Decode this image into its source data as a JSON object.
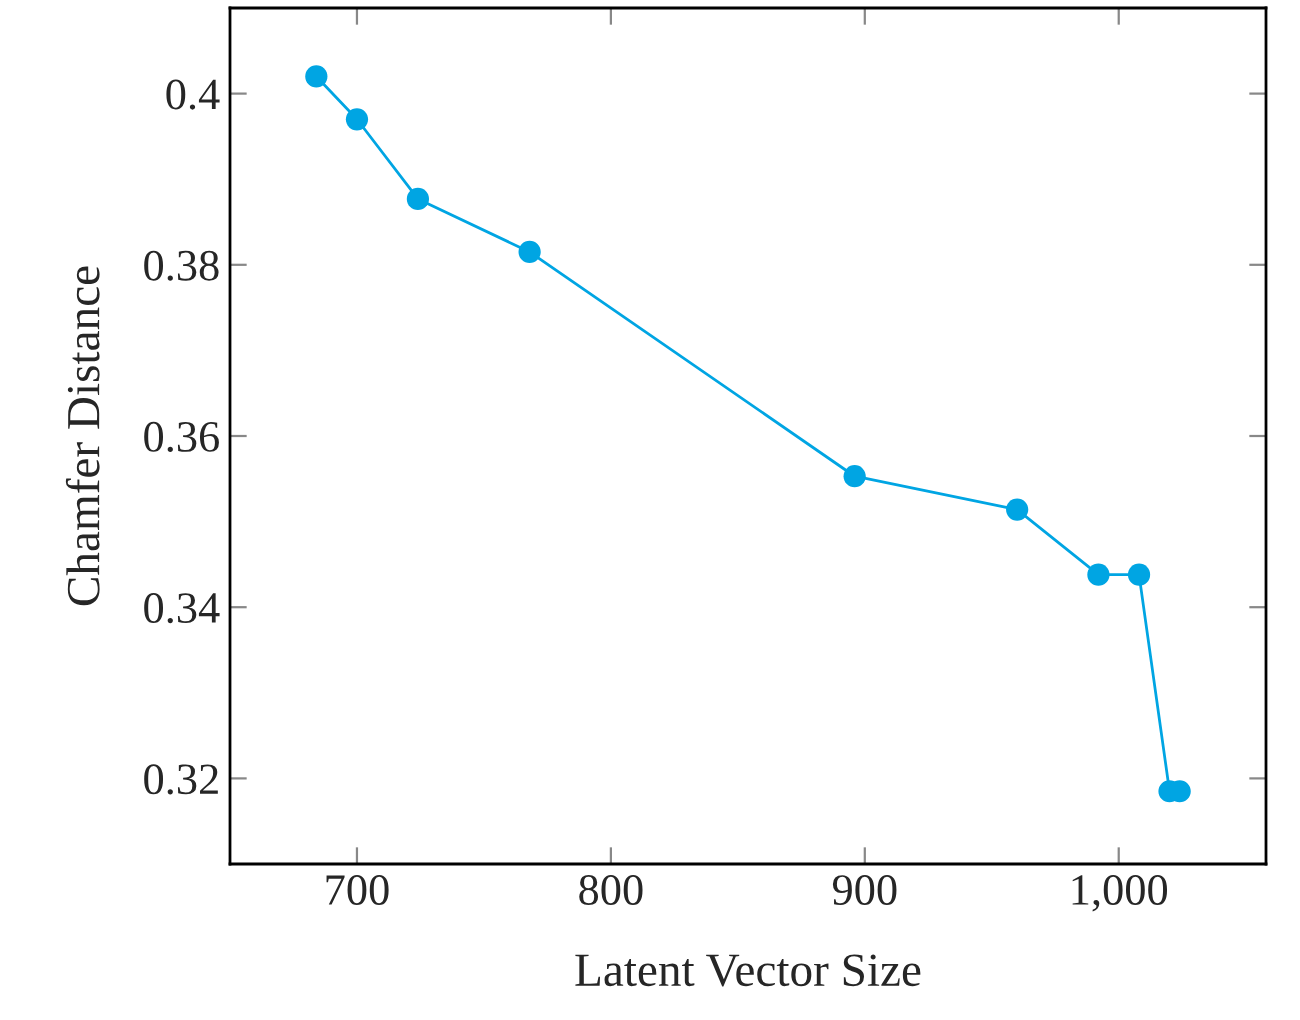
{
  "chart_data": {
    "type": "line",
    "xlabel": "Latent Vector Size",
    "ylabel": "Chamfer Distance",
    "x": [
      684,
      700,
      724,
      768,
      896,
      960,
      992,
      1008,
      1020,
      1024
    ],
    "series": [
      {
        "color": "#00a5e3",
        "values": [
          0.402,
          0.397,
          0.3877,
          0.3815,
          0.3553,
          0.3514,
          0.3438,
          0.3438,
          0.3185,
          0.3185
        ]
      }
    ],
    "xlim": [
      650,
      1058
    ],
    "ylim": [
      0.31,
      0.41
    ],
    "xticks": [
      700,
      800,
      900,
      {
        "value": 1000,
        "label": "1,000"
      }
    ],
    "yticks": [
      0.32,
      0.34,
      0.36,
      0.38,
      0.4
    ],
    "marker": "circle",
    "line_style": "solid",
    "grid": false
  }
}
